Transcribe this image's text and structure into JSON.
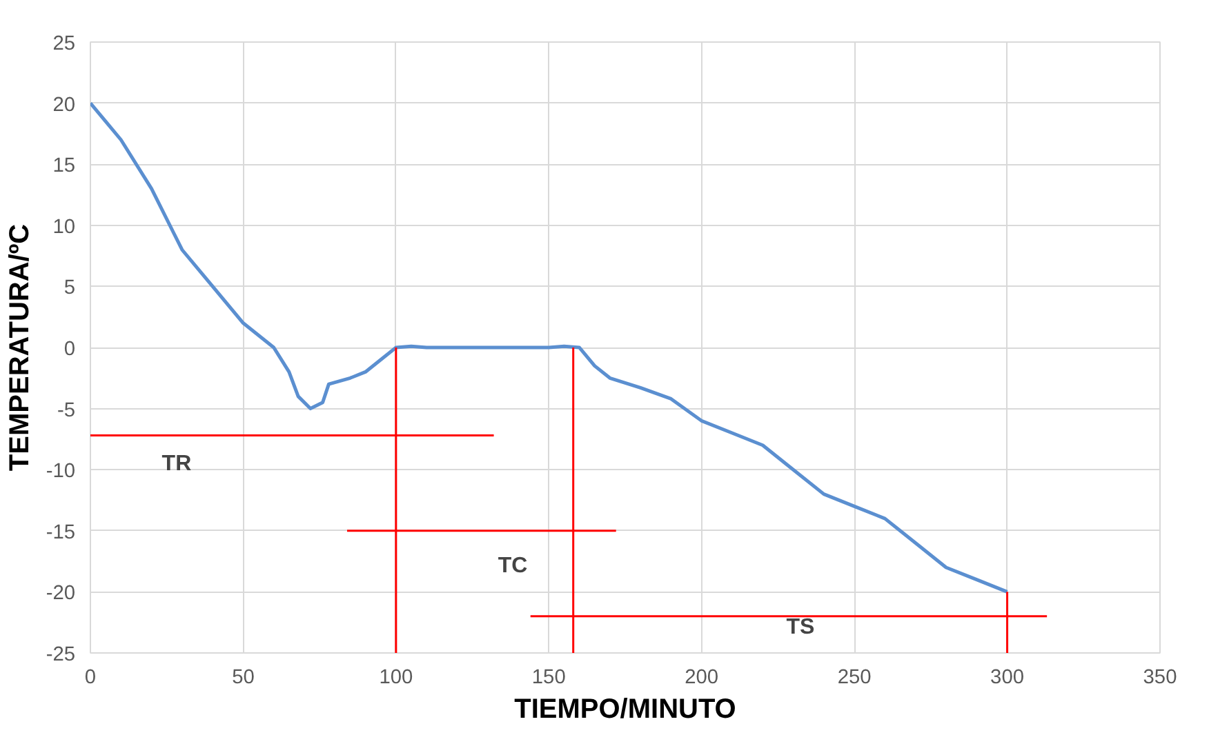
{
  "chart_data": {
    "type": "line",
    "xlabel": "TIEMPO/MINUTO",
    "ylabel": "TEMPERATURA/ºC",
    "xlim": [
      0,
      350
    ],
    "xticks": [
      0,
      50,
      100,
      150,
      200,
      250,
      300,
      350
    ],
    "ylim": [
      -25,
      25
    ],
    "yticks": [
      -25,
      -20,
      -15,
      -10,
      -5,
      0,
      5,
      10,
      15,
      20,
      25
    ],
    "grid": true,
    "series": [
      {
        "color": "#5b8fd0",
        "x": [
          0,
          5,
          10,
          20,
          30,
          40,
          50,
          60,
          65,
          68,
          72,
          76,
          78,
          85,
          90,
          95,
          100,
          105,
          110,
          150,
          155,
          160,
          165,
          170,
          180,
          190,
          200,
          210,
          220,
          230,
          240,
          250,
          260,
          270,
          280,
          290,
          300
        ],
        "values": [
          20,
          18.5,
          17,
          13,
          8,
          5,
          2,
          0,
          -2,
          -4,
          -5,
          -4.5,
          -3,
          -2.5,
          -2,
          -1,
          0,
          0.1,
          0,
          0,
          0.1,
          0,
          -1.5,
          -2.5,
          -3.3,
          -4.2,
          -6,
          -7,
          -8,
          -10,
          -12,
          -13,
          -14,
          -16,
          -18,
          -19,
          -20
        ]
      },
      {
        "color": "#ff0000",
        "x": [
          0,
          132
        ],
        "values": [
          -7.2,
          -7.2
        ]
      },
      {
        "color": "#ff0000",
        "x": [
          84,
          172
        ],
        "values": [
          -15,
          -15
        ]
      },
      {
        "color": "#ff0000",
        "x": [
          144,
          313
        ],
        "values": [
          -22,
          -22
        ]
      },
      {
        "color": "#ff0000",
        "x": [
          100,
          100
        ],
        "values": [
          0,
          -25
        ]
      },
      {
        "color": "#ff0000",
        "x": [
          158,
          158
        ],
        "values": [
          0,
          -25
        ]
      },
      {
        "color": "#ff0000",
        "x": [
          300,
          300
        ],
        "values": [
          -20,
          -25
        ]
      }
    ],
    "annotations": [
      "TR",
      "TC",
      "TS"
    ]
  }
}
